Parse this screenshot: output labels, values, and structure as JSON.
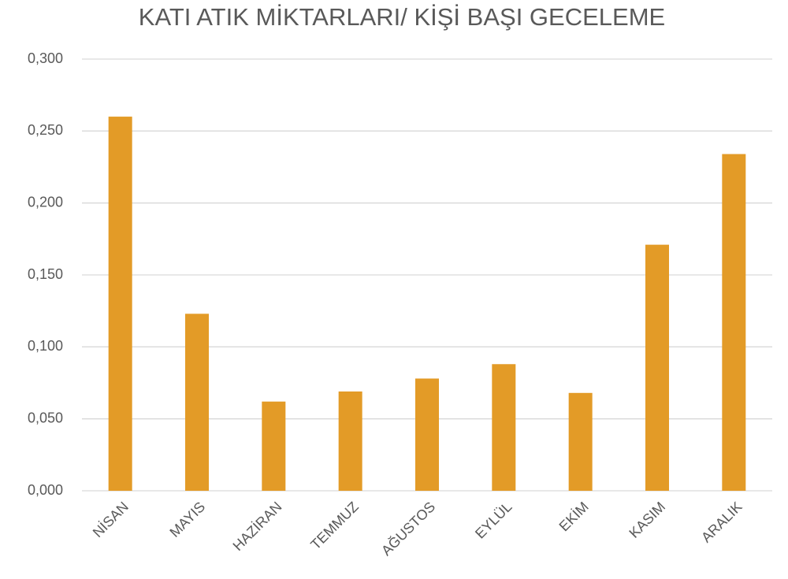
{
  "chart_data": {
    "type": "bar",
    "title": "KATI ATIK MİKTARLARI/ KİŞİ BAŞI GECELEME",
    "categories": [
      "NİSAN",
      "MAYIS",
      "HAZİRAN",
      "TEMMUZ",
      "AĞUSTOS",
      "EYLÜL",
      "EKİM",
      "KASIM",
      "ARALIK"
    ],
    "values": [
      0.26,
      0.123,
      0.062,
      0.069,
      0.078,
      0.088,
      0.068,
      0.171,
      0.234
    ],
    "color": "#e39b27",
    "ylim": [
      0,
      0.3
    ],
    "yticks": [
      {
        "value": 0,
        "label": "0,000"
      },
      {
        "value": 0.05,
        "label": "0,050"
      },
      {
        "value": 0.1,
        "label": "0,100"
      },
      {
        "value": 0.15,
        "label": "0,150"
      },
      {
        "value": 0.2,
        "label": "0,200"
      },
      {
        "value": 0.25,
        "label": "0,250"
      },
      {
        "value": 0.3,
        "label": "0,300"
      }
    ],
    "grid": true
  }
}
